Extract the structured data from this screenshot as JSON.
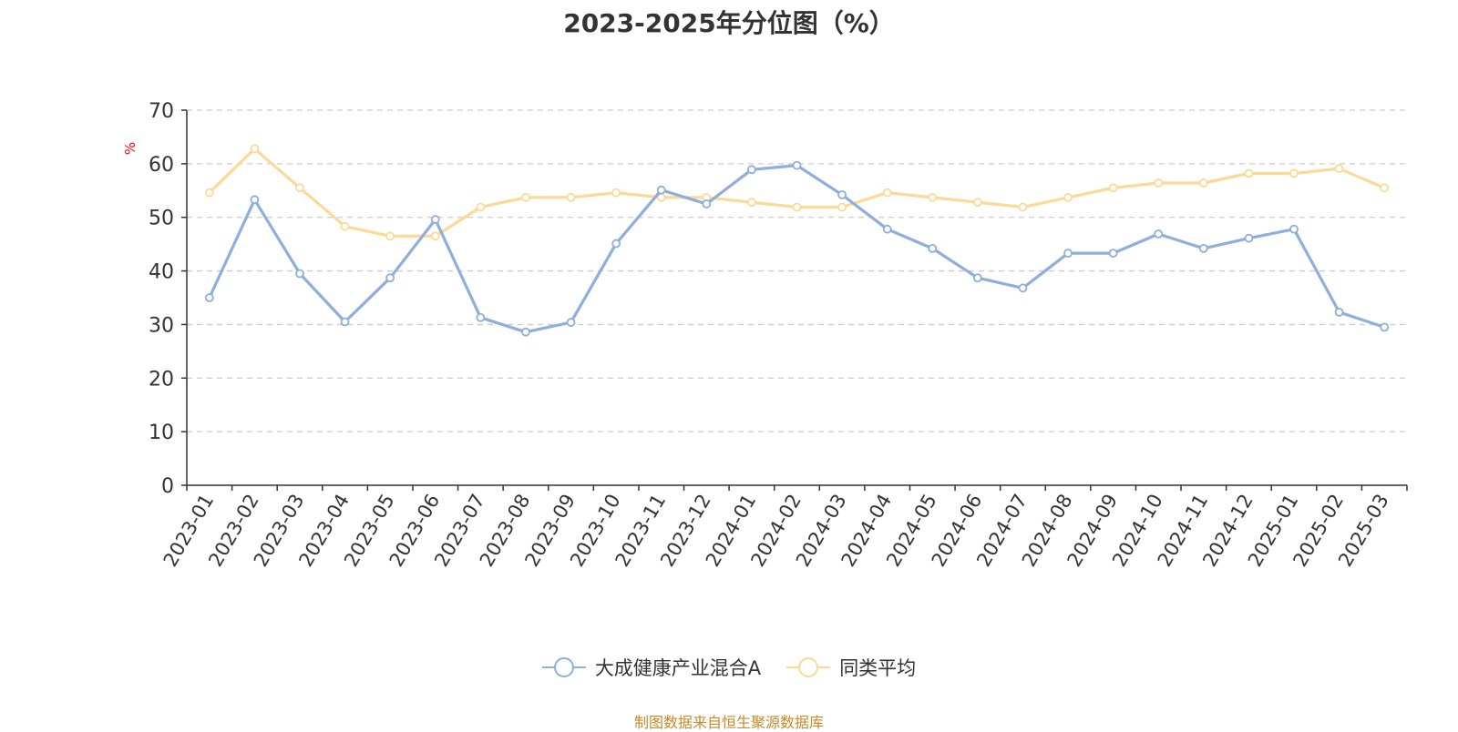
{
  "colors": {
    "series_fund": "#8eaedb",
    "series_avg": "#fcd997",
    "ylabel": "#ff0000",
    "source": "#c68a2a",
    "grid": "#cccccc",
    "axis": "#333333"
  },
  "source_text": "制图数据来自恒生聚源数据库",
  "chart_data": {
    "type": "line",
    "title": "2023-2025年分位图（%）",
    "ylabel": "%",
    "xlabel": "",
    "ylim": [
      0,
      70
    ],
    "yticks": [
      0,
      10,
      20,
      30,
      40,
      50,
      60,
      70
    ],
    "grid": "horizontal-dashed",
    "legend_position": "bottom-center",
    "categories": [
      "2023-01",
      "2023-02",
      "2023-03",
      "2023-04",
      "2023-05",
      "2023-06",
      "2023-07",
      "2023-08",
      "2023-09",
      "2023-10",
      "2023-11",
      "2023-12",
      "2024-01",
      "2024-02",
      "2024-03",
      "2024-04",
      "2024-05",
      "2024-06",
      "2024-07",
      "2024-08",
      "2024-09",
      "2024-10",
      "2024-11",
      "2024-12",
      "2025-01",
      "2025-02",
      "2025-03"
    ],
    "series": [
      {
        "name": "大成健康产业混合A",
        "values": [
          35,
          53.3,
          39.5,
          30.5,
          38.7,
          49.6,
          31.3,
          28.6,
          30.4,
          45.1,
          55.1,
          52.5,
          58.9,
          59.7,
          54.2,
          47.8,
          44.2,
          38.7,
          36.8,
          43.3,
          43.3,
          46.9,
          44.2,
          46.1,
          47.8,
          32.3,
          29.5
        ]
      },
      {
        "name": "同类平均",
        "values": [
          54.6,
          62.8,
          55.5,
          48.3,
          46.5,
          46.5,
          51.9,
          53.7,
          53.7,
          54.6,
          53.7,
          53.7,
          52.8,
          51.9,
          51.9,
          54.6,
          53.7,
          52.8,
          51.9,
          53.7,
          55.5,
          56.4,
          56.4,
          58.2,
          58.2,
          59.1,
          55.5
        ]
      }
    ]
  }
}
